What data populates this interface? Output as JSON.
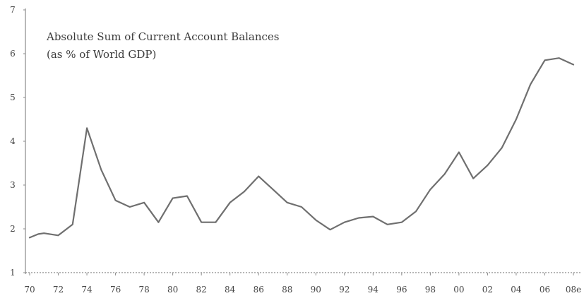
{
  "chart_data": {
    "type": "line",
    "title_lines": [
      "Absolute Sum of Current Account Balances",
      "(as % of World GDP)"
    ],
    "xlabel": "",
    "ylabel": "",
    "x_tick_labels": [
      "70",
      "72",
      "74",
      "76",
      "78",
      "80",
      "82",
      "84",
      "86",
      "88",
      "90",
      "92",
      "94",
      "96",
      "98",
      "00",
      "02",
      "04",
      "06",
      "08e"
    ],
    "y_tick_labels": [
      "1",
      "2",
      "3",
      "4",
      "5",
      "6",
      "7"
    ],
    "xlim": [
      1970,
      2008
    ],
    "ylim": [
      1,
      7
    ],
    "grid": false,
    "series": [
      {
        "x": [
          1970,
          1970.6,
          1971,
          1972,
          1973,
          1974,
          1975,
          1976,
          1977,
          1978,
          1979,
          1980,
          1981,
          1982,
          1983,
          1984,
          1985,
          1986,
          1987,
          1988,
          1989,
          1990,
          1991,
          1992,
          1993,
          1994,
          1995,
          1996,
          1997,
          1998,
          1999,
          2000,
          2001,
          2002,
          2003,
          2004,
          2005,
          2006,
          2007,
          2008
        ],
        "y": [
          1.8,
          1.88,
          1.9,
          1.85,
          2.1,
          4.3,
          3.35,
          2.65,
          2.5,
          2.6,
          2.15,
          2.7,
          2.75,
          2.15,
          2.15,
          2.6,
          2.85,
          3.2,
          2.9,
          2.6,
          2.5,
          2.2,
          1.98,
          2.15,
          2.25,
          2.28,
          2.1,
          2.15,
          2.4,
          2.9,
          3.25,
          3.75,
          3.15,
          3.45,
          3.85,
          4.5,
          5.3,
          5.85,
          5.9,
          5.75
        ]
      }
    ]
  }
}
